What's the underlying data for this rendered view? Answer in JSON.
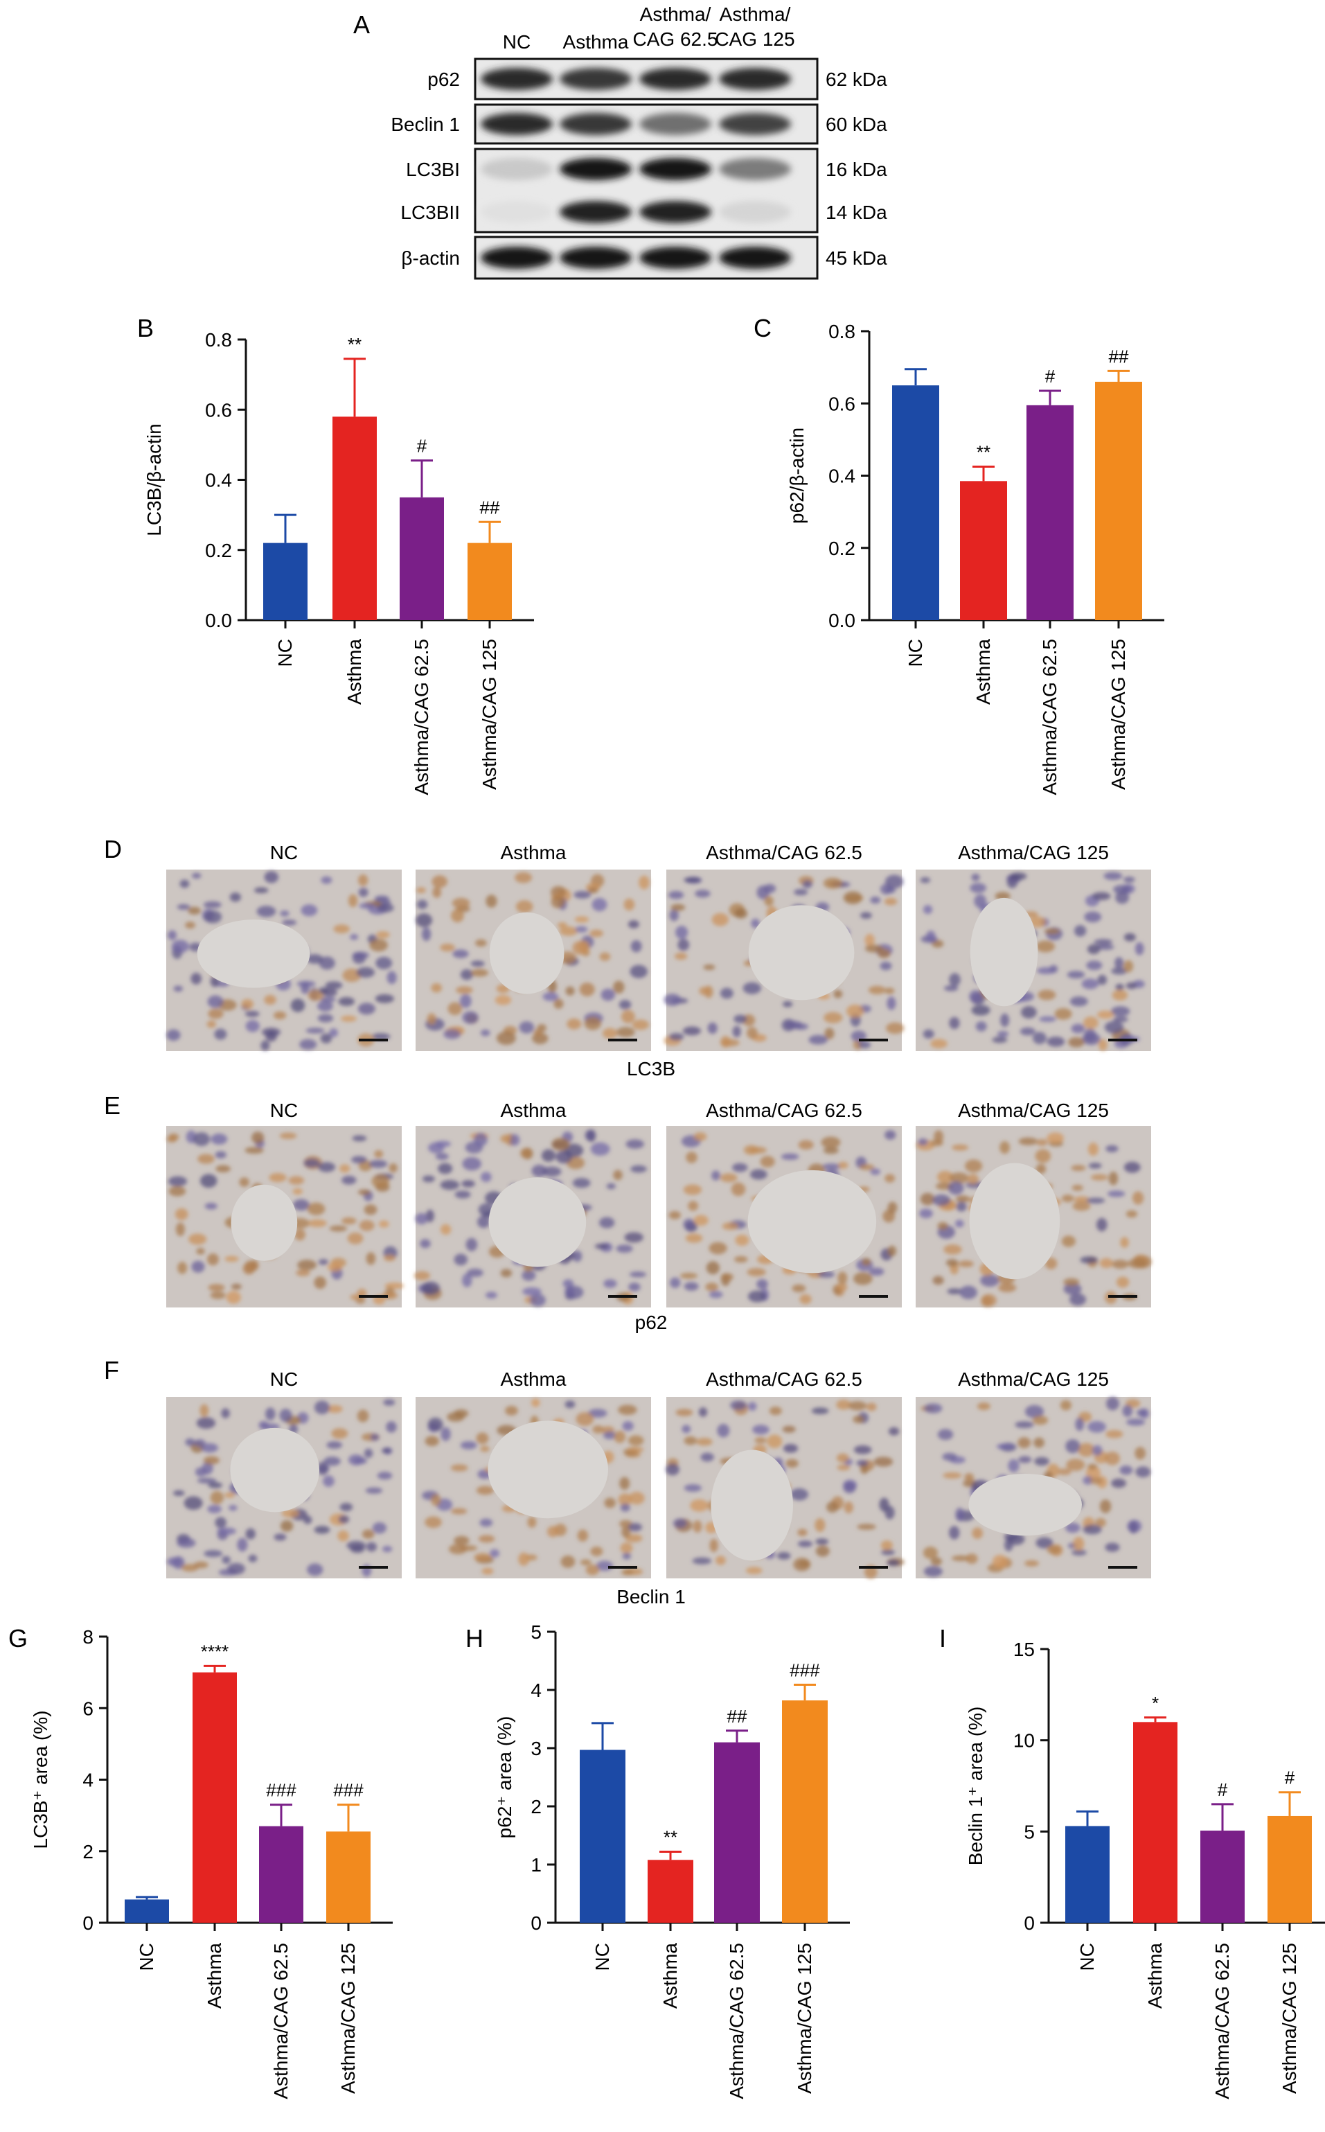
{
  "colors": {
    "nc": "#1c4aa6",
    "asthma": "#e42421",
    "cag62": "#7a1f88",
    "cag125": "#f28a1e",
    "axis": "#111111",
    "blot_bg": "#e9e9e9",
    "ihc_bg": "#c9c8c3"
  },
  "panel_letters": {
    "A": "A",
    "B": "B",
    "C": "C",
    "D": "D",
    "E": "E",
    "F": "F",
    "G": "G",
    "H": "H",
    "I": "I"
  },
  "blot": {
    "lanes": [
      "NC",
      "Asthma",
      "Asthma/\nCAG 62.5",
      "Asthma/\nCAG 125"
    ],
    "rows": [
      {
        "label": "p62",
        "kda": "62 kDa",
        "intensity": [
          0.85,
          0.8,
          0.85,
          0.85
        ]
      },
      {
        "label": "Beclin 1",
        "kda": "60 kDa",
        "intensity": [
          0.85,
          0.8,
          0.55,
          0.75
        ]
      },
      {
        "label": "LC3BI",
        "kda": "16 kDa",
        "intensity": [
          0.15,
          0.95,
          0.95,
          0.5
        ]
      },
      {
        "label": "LC3BII",
        "kda": "14 kDa",
        "intensity": [
          0.05,
          0.9,
          0.9,
          0.1
        ]
      },
      {
        "label": "β-actin",
        "kda": "45 kDa",
        "intensity": [
          0.95,
          0.95,
          0.95,
          0.95
        ]
      }
    ]
  },
  "ihc": {
    "groups": [
      "NC",
      "Asthma",
      "Asthma/CAG 62.5",
      "Asthma/CAG 125"
    ],
    "rows": [
      {
        "caption": "LC3B",
        "stain": [
          0.2,
          0.75,
          0.45,
          0.25
        ]
      },
      {
        "caption": "p62",
        "stain": [
          0.65,
          0.25,
          0.6,
          0.7
        ]
      },
      {
        "caption": "Beclin 1",
        "stain": [
          0.3,
          0.7,
          0.45,
          0.4
        ]
      }
    ]
  },
  "chart_data": [
    {
      "panel": "B",
      "type": "bar",
      "categories": [
        "NC",
        "Asthma",
        "Asthma/CAG 62.5",
        "Asthma/CAG 125"
      ],
      "values": [
        0.22,
        0.58,
        0.35,
        0.22
      ],
      "errors": [
        0.08,
        0.165,
        0.105,
        0.06
      ],
      "annotations": [
        "",
        "**",
        "#",
        "##"
      ],
      "ylabel": "LC3B/β-actin",
      "ylim": [
        0,
        0.8
      ],
      "yticks": [
        "0.0",
        "0.2",
        "0.4",
        "0.6",
        "0.8"
      ]
    },
    {
      "panel": "C",
      "type": "bar",
      "categories": [
        "NC",
        "Asthma",
        "Asthma/CAG 62.5",
        "Asthma/CAG 125"
      ],
      "values": [
        0.65,
        0.385,
        0.595,
        0.66
      ],
      "errors": [
        0.045,
        0.04,
        0.04,
        0.03
      ],
      "annotations": [
        "",
        "**",
        "#",
        "##"
      ],
      "ylabel": "p62/β-actin",
      "ylim": [
        0,
        0.8
      ],
      "yticks": [
        "0.0",
        "0.2",
        "0.4",
        "0.6",
        "0.8"
      ]
    },
    {
      "panel": "G",
      "type": "bar",
      "categories": [
        "NC",
        "Asthma",
        "Asthma/CAG 62.5",
        "Asthma/CAG 125"
      ],
      "values": [
        0.65,
        7.0,
        2.7,
        2.55
      ],
      "errors": [
        0.07,
        0.18,
        0.6,
        0.75
      ],
      "annotations": [
        "",
        "****",
        "###",
        "###"
      ],
      "ylabel": "LC3B⁺ area (%)",
      "ylim": [
        0,
        8
      ],
      "yticks": [
        "0",
        "2",
        "4",
        "6",
        "8"
      ]
    },
    {
      "panel": "H",
      "type": "bar",
      "categories": [
        "NC",
        "Asthma",
        "Asthma/CAG 62.5",
        "Asthma/CAG 125"
      ],
      "values": [
        2.97,
        1.08,
        3.1,
        3.82
      ],
      "errors": [
        0.46,
        0.14,
        0.2,
        0.27
      ],
      "annotations": [
        "",
        "**",
        "##",
        "###"
      ],
      "ylabel": "p62⁺ area (%)",
      "ylim": [
        0,
        5
      ],
      "yticks": [
        "0",
        "1",
        "2",
        "3",
        "4",
        "5"
      ]
    },
    {
      "panel": "I",
      "type": "bar",
      "categories": [
        "NC",
        "Asthma",
        "Asthma/CAG 62.5",
        "Asthma/CAG 125"
      ],
      "values": [
        5.3,
        11.0,
        5.05,
        5.85
      ],
      "errors": [
        0.8,
        0.25,
        1.45,
        1.3
      ],
      "annotations": [
        "",
        "*",
        "#",
        "#"
      ],
      "ylabel": "Beclin 1⁺ area (%)",
      "ylim": [
        0,
        15
      ],
      "yticks": [
        "0",
        "5",
        "10",
        "15"
      ]
    }
  ]
}
